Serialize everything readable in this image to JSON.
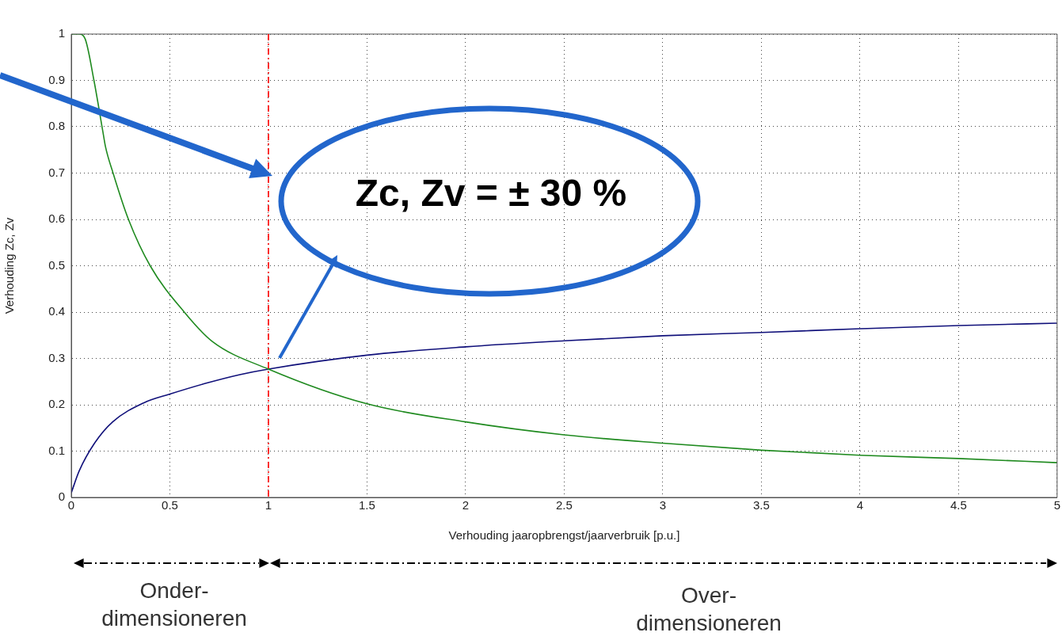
{
  "chart_data": {
    "type": "line",
    "xlabel": "Verhouding jaaropbrengst/jaarverbruik [p.u.]",
    "ylabel": "Verhouding Zc, Zv",
    "xlim": [
      0,
      5
    ],
    "xticks": [
      0,
      0.5,
      1,
      1.5,
      2,
      2.5,
      3,
      3.5,
      4,
      4.5,
      5
    ],
    "ylim": [
      0,
      1
    ],
    "yticks": [
      0,
      0.1,
      0.2,
      0.3,
      0.4,
      0.5,
      0.6,
      0.7,
      0.8,
      0.9,
      1
    ],
    "grid": true,
    "legend": false,
    "line_style": "solid",
    "series": [
      {
        "color": "#1f8a1f",
        "x": [
          0,
          0.04,
          0.07,
          0.115,
          0.16,
          0.173,
          0.212,
          0.29,
          0.4,
          0.573,
          0.714,
          1,
          1.5,
          2,
          2.5,
          3,
          3.5,
          4,
          4.5,
          5
        ],
        "values": [
          1,
          1,
          0.99,
          0.9,
          0.79,
          0.758,
          0.7,
          0.6,
          0.5,
          0.4,
          0.337,
          0.277,
          0.202,
          0.163,
          0.135,
          0.117,
          0.102,
          0.091,
          0.084,
          0.075
        ]
      },
      {
        "color": "#10107a",
        "x": [
          0,
          0.04,
          0.118,
          0.21,
          0.367,
          0.5,
          0.68,
          0.855,
          1,
          1.5,
          2,
          2.5,
          3,
          3.5,
          4,
          4.5,
          5
        ],
        "values": [
          0.01,
          0.057,
          0.117,
          0.163,
          0.204,
          0.223,
          0.246,
          0.265,
          0.277,
          0.307,
          0.325,
          0.338,
          0.349,
          0.356,
          0.364,
          0.371,
          0.376
        ]
      }
    ],
    "ref_lines": [
      {
        "axis": "x",
        "value": 1,
        "color": "#ff0000",
        "line_style": "dashed"
      }
    ],
    "annotations": [
      "Zc, Zv = ± 30 %",
      "Onder-\ndimensioneren",
      "Over-\ndimensioneren"
    ]
  }
}
